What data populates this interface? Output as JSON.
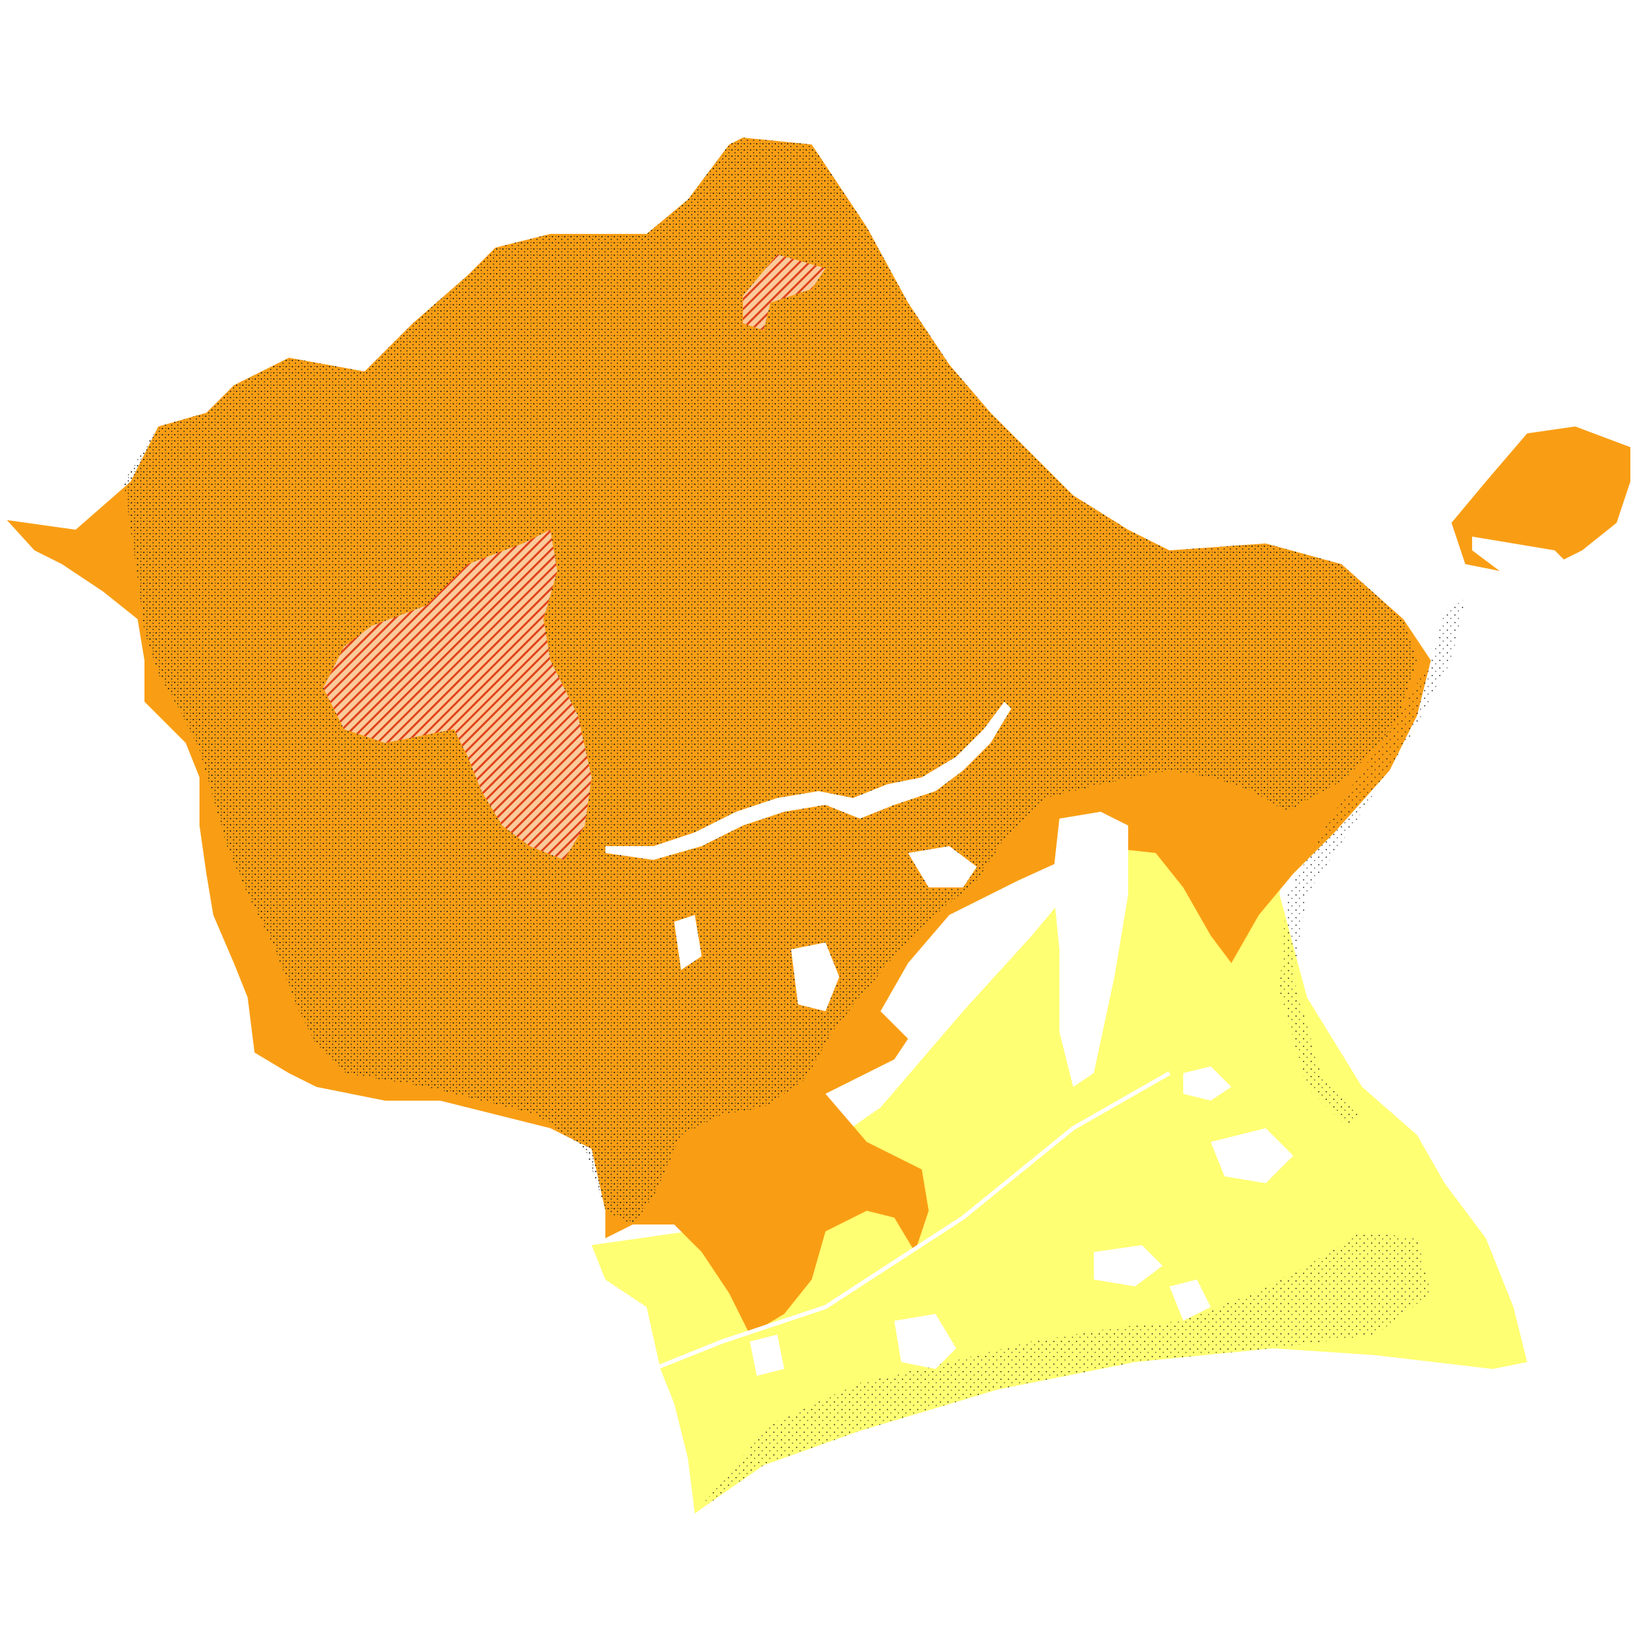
{
  "map": {
    "legend_colors": {
      "hills_unit": "#F99E14",
      "coastal_plain_unit": "#FFFF73",
      "hatched_unit_fill": "#FBCB9B",
      "hatched_unit_stripe": "#E0431A",
      "stipple": "#1a1a1a",
      "water_and_urban": "#FFFFFF"
    },
    "units": [
      {
        "id": "hills",
        "color_ref": "hills_unit",
        "pattern": "stippled"
      },
      {
        "id": "coastal-plain",
        "color_ref": "coastal_plain_unit",
        "pattern": "solid"
      },
      {
        "id": "hatched-zone-west",
        "color_ref": "hatched_unit_fill",
        "pattern": "diagonal-hatch"
      },
      {
        "id": "hatched-zone-north",
        "color_ref": "hatched_unit_fill",
        "pattern": "diagonal-hatch"
      },
      {
        "id": "beach-dunes",
        "color_ref": "coastal_plain_unit",
        "pattern": "stippled"
      }
    ]
  }
}
